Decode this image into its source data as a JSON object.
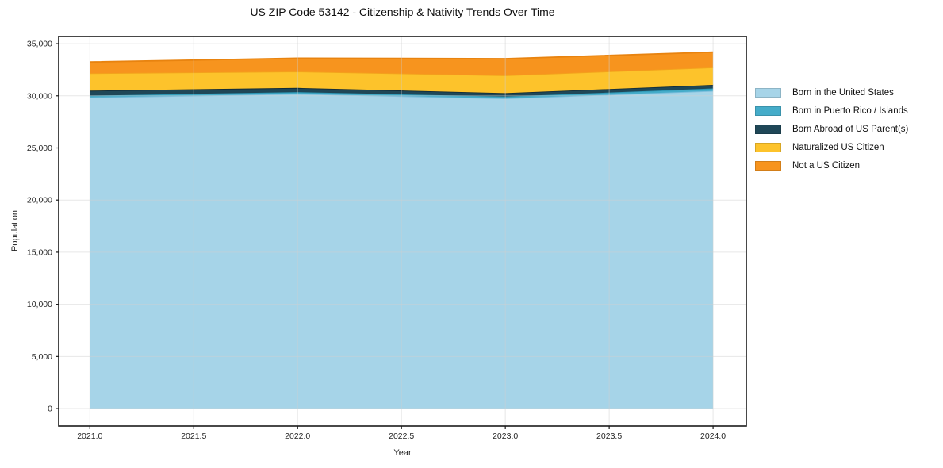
{
  "page": {
    "background": "#ffffff"
  },
  "chart_data": {
    "type": "area",
    "stacked": true,
    "title": "US ZIP Code 53142 - Citizenship & Nativity Trends Over Time",
    "xlabel": "Year",
    "ylabel": "Population",
    "x": [
      2021,
      2022,
      2023,
      2024
    ],
    "series": [
      {
        "name": "Born in the United States",
        "color": "#A6D4E8",
        "edge": "#7CBEDC",
        "values": [
          29850,
          30180,
          29750,
          30470
        ]
      },
      {
        "name": "Born in Puerto Rico / Islands",
        "color": "#45ACC9",
        "edge": "#2D97B5",
        "values": [
          160,
          175,
          175,
          235
        ]
      },
      {
        "name": "Born Abroad of US Parent(s)",
        "color": "#1F4757",
        "edge": "#132C38",
        "values": [
          480,
          405,
          335,
          340
        ]
      },
      {
        "name": "Naturalized US Citizen",
        "color": "#FDC32B",
        "edge": "#F3A31C",
        "values": [
          1680,
          1575,
          1700,
          1675
        ]
      },
      {
        "name": "Not a US Citizen",
        "color": "#F7941E",
        "edge": "#E8830F",
        "values": [
          1070,
          1270,
          1600,
          1470
        ]
      }
    ],
    "totals": [
      33240,
      33605,
      33560,
      34190
    ],
    "xlim": [
      2020.85,
      2024.16
    ],
    "ylim": [
      -1670,
      35690
    ],
    "xticks": {
      "values": [
        2021,
        2021.5,
        2022,
        2022.5,
        2023,
        2023.5,
        2024
      ],
      "labels": [
        "2021.0",
        "2021.5",
        "2022.0",
        "2022.5",
        "2023.0",
        "2023.5",
        "2024.0"
      ]
    },
    "yticks": {
      "values": [
        0,
        5000,
        10000,
        15000,
        20000,
        25000,
        30000,
        35000
      ],
      "labels": [
        "0",
        "5,000",
        "10,000",
        "15,000",
        "20,000",
        "25,000",
        "30,000",
        "35,000"
      ]
    },
    "grid": true,
    "legend_position": "right-outside"
  }
}
